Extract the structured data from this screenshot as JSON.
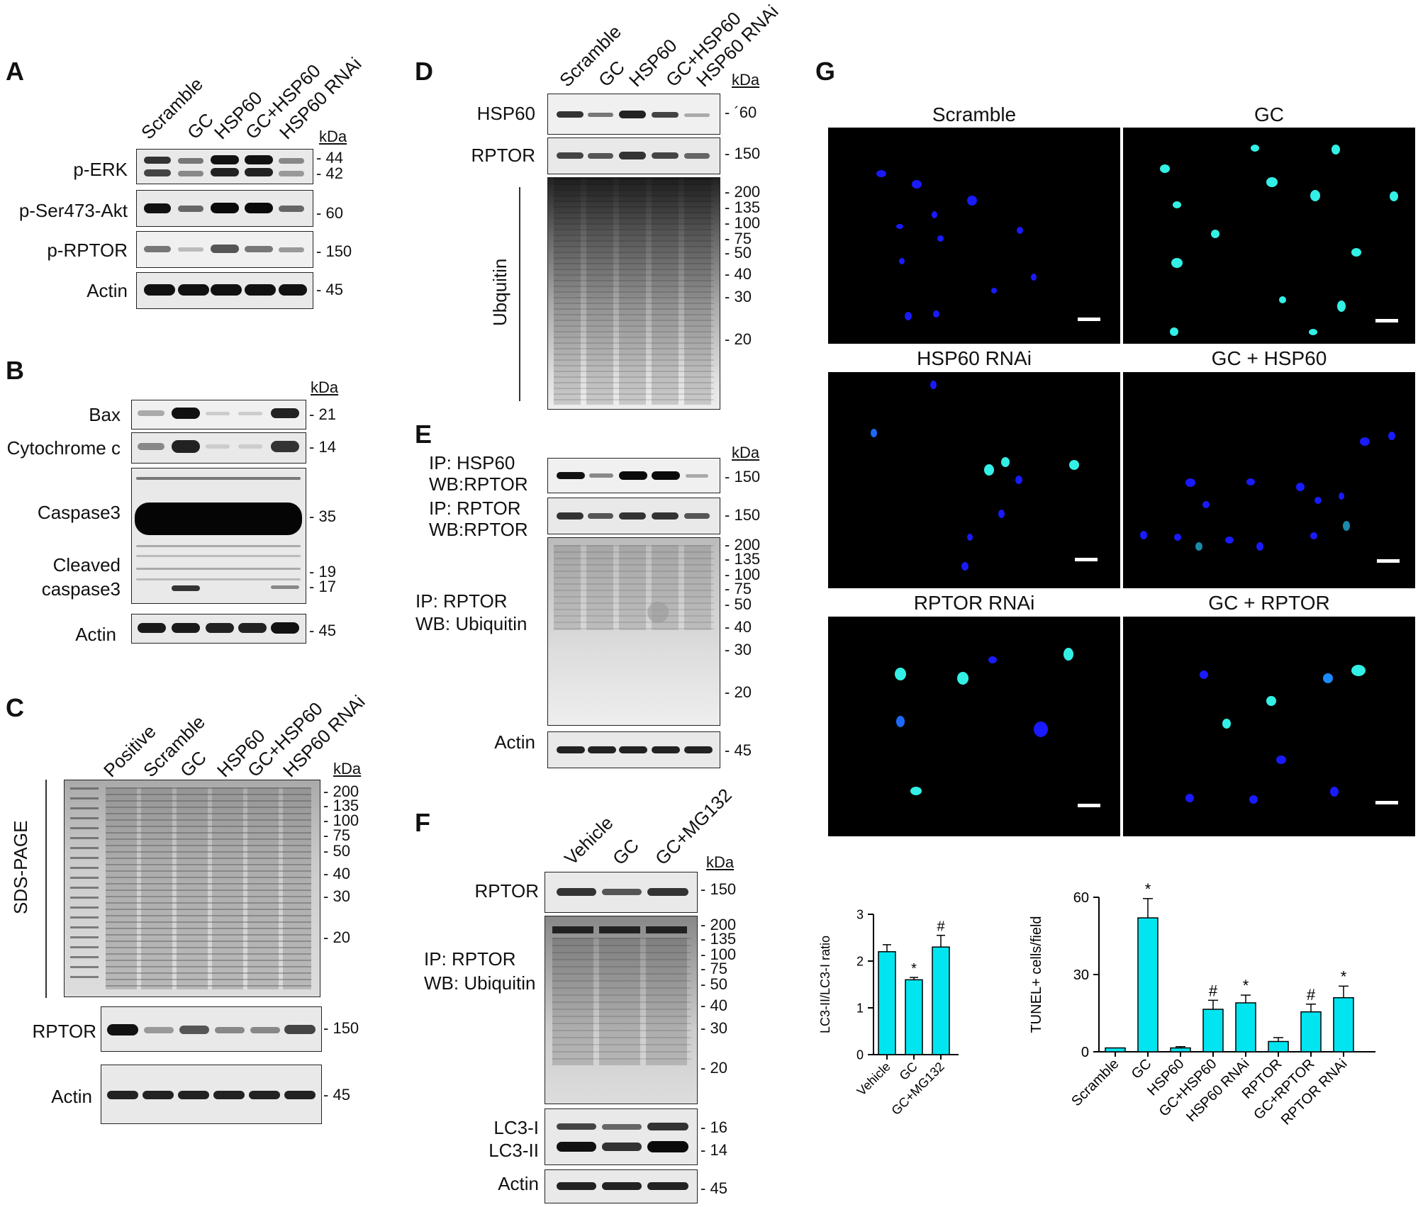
{
  "panelA": {
    "label": "A",
    "lanes": [
      "Scramble",
      "GC",
      "HSP60",
      "GC+HSP60",
      "HSP60 RNAi"
    ],
    "kda": "kDa",
    "rows": [
      {
        "name": "p-ERK",
        "mw": [
          "44",
          "42"
        ]
      },
      {
        "name": "p-Ser473-Akt",
        "mw": [
          "60"
        ]
      },
      {
        "name": "p-RPTOR",
        "mw": [
          "150"
        ]
      },
      {
        "name": "Actin",
        "mw": [
          "45"
        ]
      }
    ]
  },
  "panelB": {
    "label": "B",
    "kda": "kDa",
    "rows": [
      {
        "name": "Bax",
        "mw": "21"
      },
      {
        "name": "Cytochrome c",
        "mw": "14"
      },
      {
        "name": "Caspase3",
        "mw": "35"
      },
      {
        "name": "Cleaved",
        "name2": "caspase3",
        "mw": "19",
        "mw2": "17"
      },
      {
        "name": "Actin",
        "mw": "45"
      }
    ]
  },
  "panelC": {
    "label": "C",
    "lanes": [
      "Positive",
      "Scramble",
      "GC",
      "HSP60",
      "GC+HSP60",
      "HSP60 RNAi"
    ],
    "kda": "kDa",
    "side_label": "SDS-PAGE",
    "markers": [
      "200",
      "135",
      "100",
      "75",
      "50",
      "40",
      "30",
      "20"
    ],
    "rows": [
      {
        "name": "RPTOR",
        "mw": "150"
      },
      {
        "name": "Actin",
        "mw": "45"
      }
    ]
  },
  "panelD": {
    "label": "D",
    "lanes": [
      "Scramble",
      "GC",
      "HSP60",
      "GC+HSP60",
      "HSP60 RNAi"
    ],
    "kda": "kDa",
    "rows": [
      {
        "name": "HSP60",
        "mw": "´60"
      },
      {
        "name": "RPTOR",
        "mw": "150"
      }
    ],
    "side_label": "Ubquitin",
    "markers": [
      "200",
      "135",
      "100",
      "75",
      "50",
      "40",
      "30",
      "20"
    ]
  },
  "panelE": {
    "label": "E",
    "kda": "kDa",
    "rows": [
      {
        "line1": "IP: HSP60",
        "line2": "WB:RPTOR",
        "mw": "150"
      },
      {
        "line1": "IP: RPTOR",
        "line2": "WB:RPTOR",
        "mw": "150"
      },
      {
        "line1": "IP: RPTOR",
        "line2": "WB: Ubiquitin"
      },
      {
        "line1": "Actin",
        "mw": "45"
      }
    ],
    "markers": [
      "200",
      "135",
      "100",
      "75",
      "50",
      "40",
      "30",
      "20"
    ]
  },
  "panelF": {
    "label": "F",
    "lanes": [
      "Vehicle",
      "GC",
      "GC+MG132"
    ],
    "kda": "kDa",
    "rows": [
      {
        "name": "RPTOR",
        "mw": "150"
      },
      {
        "line1": "IP: RPTOR",
        "line2": "WB: Ubiquitin"
      },
      {
        "name": "LC3-I",
        "name2": "LC3-II",
        "mw": "16",
        "mw2": "14"
      },
      {
        "name": "Actin",
        "mw": "45"
      }
    ],
    "markers": [
      "200",
      "135",
      "100",
      "75",
      "50",
      "40",
      "30",
      "20"
    ]
  },
  "panelG": {
    "label": "G",
    "images": [
      {
        "title": "Scramble"
      },
      {
        "title": "GC"
      },
      {
        "title": "HSP60 RNAi"
      },
      {
        "title": "GC + HSP60"
      },
      {
        "title": "RPTOR RNAi"
      },
      {
        "title": "GC + RPTOR"
      }
    ],
    "colors": {
      "dapi": "#1a1aff",
      "tunel": "#33f0e6",
      "bar": "#00e5f0"
    }
  },
  "chart_data": [
    {
      "type": "bar",
      "categories": [
        "Vehicle",
        "GC",
        "GC+MG132"
      ],
      "values": [
        2.2,
        1.6,
        2.3
      ],
      "errors": [
        0.15,
        0.05,
        0.25
      ],
      "annotations": [
        "",
        "*",
        "#"
      ],
      "ylabel": "LC3-II/LC3-I ratio",
      "ylim": [
        0,
        3
      ],
      "yticks": [
        "0",
        "1",
        "2",
        "3"
      ]
    },
    {
      "type": "bar",
      "categories": [
        "Scramble",
        "GC",
        "HSP60",
        "GC+HSP60",
        "HSP60 RNAi",
        "RPTOR",
        "GC+RPTOR",
        "RPTOR RNAi"
      ],
      "values": [
        1.5,
        52,
        1.5,
        16.5,
        19,
        4,
        15.5,
        21
      ],
      "errors": [
        0,
        7.5,
        0.5,
        3.5,
        3,
        1.5,
        3,
        4.5
      ],
      "annotations": [
        "",
        "*",
        "",
        "#",
        "*",
        "",
        "#",
        "*"
      ],
      "ylabel": "TUNEL+ cells/field",
      "ylim": [
        0,
        60
      ],
      "yticks": [
        "0",
        "30",
        "60"
      ]
    }
  ]
}
